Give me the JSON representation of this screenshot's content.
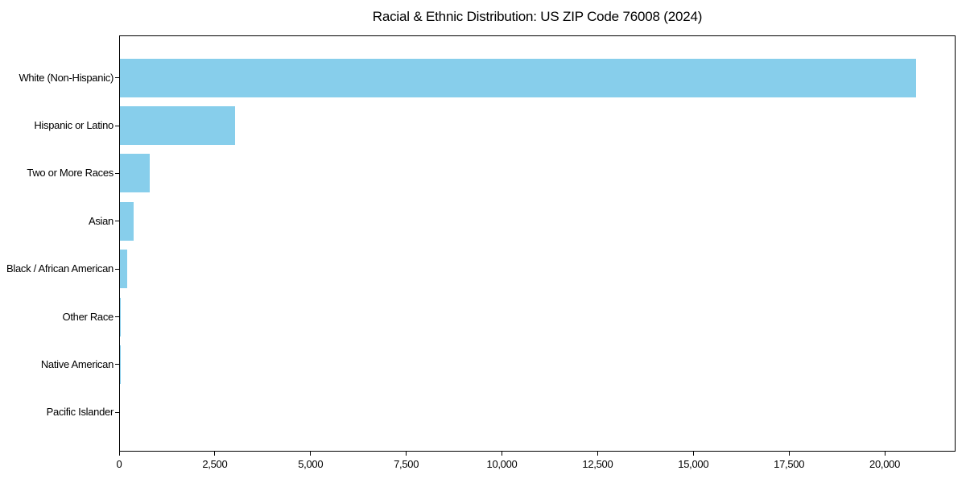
{
  "title": "Racial & Ethnic Distribution: US ZIP Code 76008 (2024)",
  "colors": {
    "bar_fill": "#87CEEB",
    "axis": "#000000",
    "background": "#FFFFFF",
    "text": "#000000"
  },
  "chart_data": {
    "type": "bar",
    "orientation": "horizontal",
    "title": "Racial & Ethnic Distribution: US ZIP Code 76008 (2024)",
    "categories": [
      "White (Non-Hispanic)",
      "Hispanic or Latino",
      "Two or More Races",
      "Asian",
      "Black / African American",
      "Other Race",
      "Native American",
      "Pacific Islander"
    ],
    "values": [
      20800,
      3000,
      780,
      360,
      180,
      30,
      10,
      0
    ],
    "xlabel": "",
    "ylabel": "",
    "xlim": [
      0,
      21850
    ],
    "x_ticks": [
      0,
      2500,
      5000,
      7500,
      10000,
      12500,
      15000,
      17500,
      20000
    ],
    "x_tick_labels": [
      "0",
      "2,500",
      "5,000",
      "7,500",
      "10,000",
      "12,500",
      "15,000",
      "17,500",
      "20,000"
    ],
    "bar_color": "#87CEEB",
    "grid": false,
    "legend": false,
    "category_order_note": "largest value at top, descending downward"
  }
}
